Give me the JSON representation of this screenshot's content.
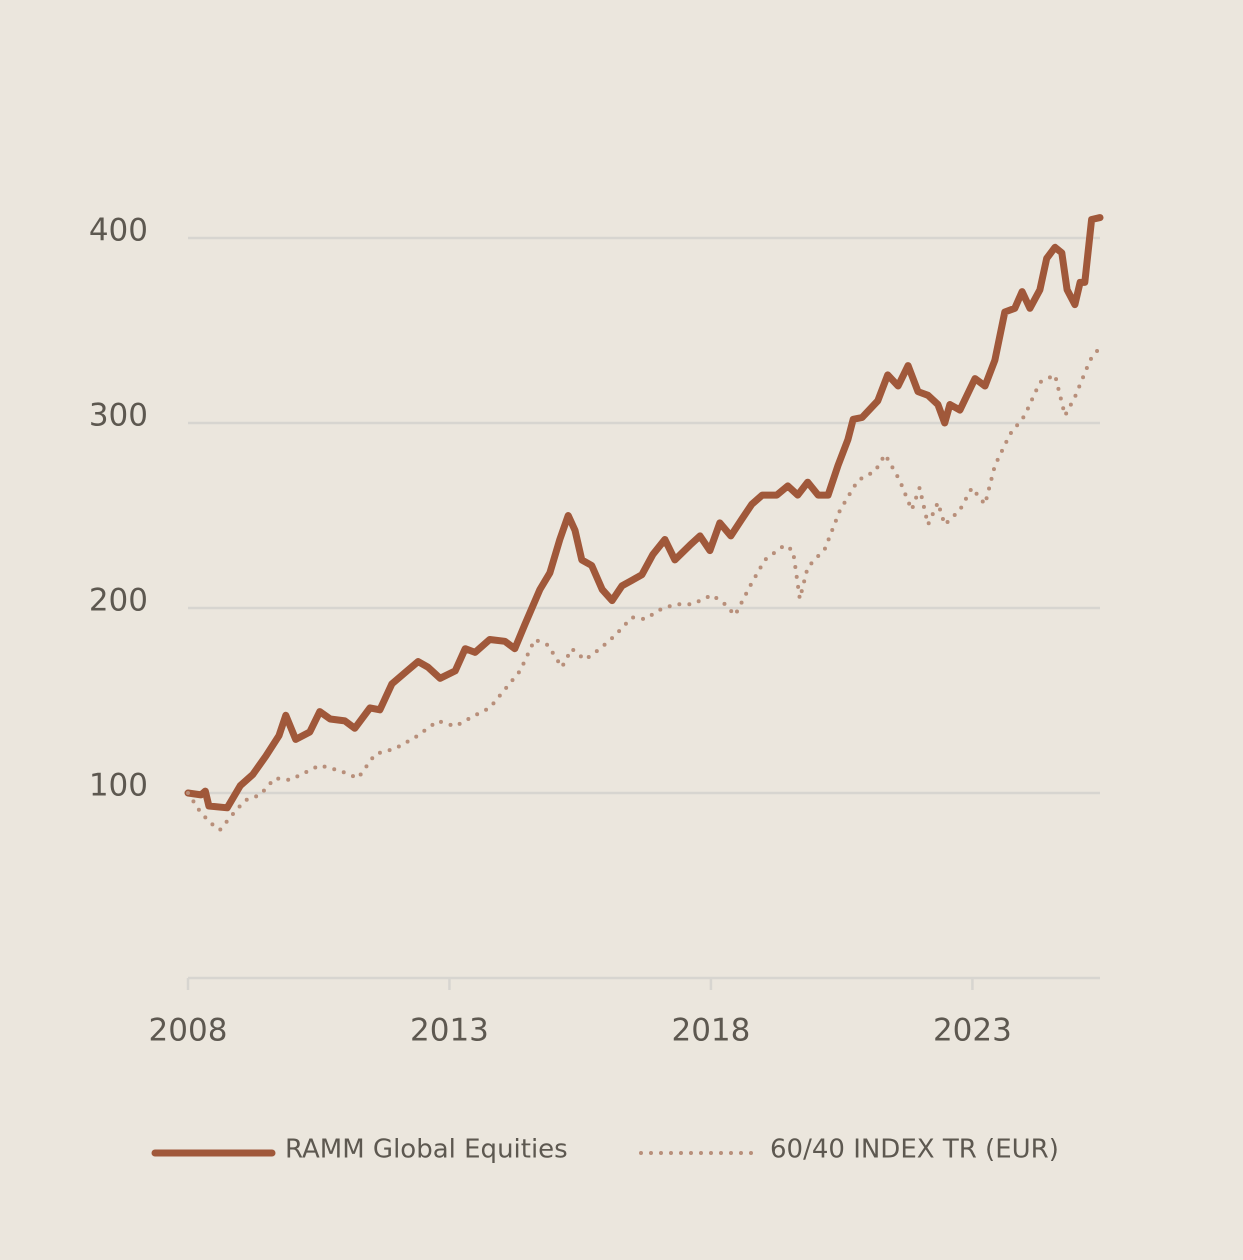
{
  "chart_data": {
    "type": "line",
    "xlim": [
      2008,
      2025.44
    ],
    "xticks": [
      2008,
      2013,
      2018,
      2023
    ],
    "ylim": [
      0,
      420
    ],
    "yticks": [
      100,
      200,
      300,
      400
    ],
    "grid": true,
    "legend": "bottom",
    "series": [
      {
        "name": "RAMM Global Equities",
        "color": "#a0583a",
        "style": "solid",
        "x": [
          2008.0,
          2008.25,
          2008.33,
          2008.4,
          2008.75,
          2009.0,
          2009.24,
          2009.49,
          2009.74,
          2009.87,
          2010.06,
          2010.33,
          2010.52,
          2010.72,
          2011.0,
          2011.19,
          2011.48,
          2011.67,
          2011.9,
          2012.19,
          2012.4,
          2012.59,
          2012.82,
          2013.11,
          2013.3,
          2013.49,
          2013.77,
          2014.06,
          2014.25,
          2014.44,
          2014.73,
          2014.92,
          2015.11,
          2015.27,
          2015.4,
          2015.53,
          2015.72,
          2015.92,
          2016.11,
          2016.3,
          2016.49,
          2016.68,
          2016.89,
          2017.12,
          2017.31,
          2017.6,
          2017.79,
          2017.98,
          2018.17,
          2018.38,
          2018.59,
          2018.78,
          2018.98,
          2019.26,
          2019.47,
          2019.66,
          2019.85,
          2020.05,
          2020.24,
          2020.43,
          2020.62,
          2020.72,
          2020.89,
          2021.19,
          2021.38,
          2021.58,
          2021.77,
          2021.96,
          2022.15,
          2022.34,
          2022.47,
          2022.57,
          2022.76,
          2023.05,
          2023.24,
          2023.43,
          2023.62,
          2023.81,
          2023.95,
          2024.1,
          2024.29,
          2024.42,
          2024.58,
          2024.71,
          2024.81,
          2024.96,
          2025.06,
          2025.15,
          2025.28,
          2025.44
        ],
        "values": [
          100,
          99,
          101,
          93,
          92,
          104,
          110,
          120,
          131,
          142,
          129,
          133,
          144,
          140,
          139,
          135,
          146,
          145,
          159,
          166,
          171,
          168,
          162,
          166,
          178,
          176,
          183,
          182,
          178,
          191,
          210,
          219,
          237,
          250,
          242,
          226,
          223,
          210,
          204,
          212,
          215,
          218,
          229,
          237,
          226,
          234,
          239,
          231,
          246,
          239,
          248,
          256,
          261,
          261,
          266,
          261,
          268,
          261,
          261,
          277,
          291,
          302,
          303,
          312,
          326,
          320,
          331,
          317,
          315,
          310,
          300,
          310,
          307,
          324,
          320,
          334,
          360,
          362,
          371,
          362,
          372,
          389,
          395,
          392,
          372,
          364,
          376,
          376,
          410,
          411
        ]
      },
      {
        "name": "60/40 INDEX TR (EUR)",
        "color": "#b88f7a",
        "style": "dotted",
        "x": [
          2008.0,
          2008.23,
          2008.42,
          2008.61,
          2008.84,
          2009.09,
          2009.38,
          2009.66,
          2009.95,
          2010.24,
          2010.52,
          2010.91,
          2011.25,
          2011.58,
          2011.96,
          2012.34,
          2012.78,
          2013.11,
          2013.49,
          2013.77,
          2014.06,
          2014.35,
          2014.63,
          2014.88,
          2015.15,
          2015.34,
          2015.59,
          2015.88,
          2016.16,
          2016.49,
          2016.74,
          2017.02,
          2017.31,
          2017.64,
          2018.02,
          2018.27,
          2018.46,
          2018.75,
          2019.03,
          2019.41,
          2019.57,
          2019.7,
          2019.85,
          2020.18,
          2020.47,
          2020.81,
          2021.14,
          2021.33,
          2021.61,
          2021.84,
          2021.99,
          2022.15,
          2022.34,
          2022.47,
          2022.76,
          2022.99,
          2023.24,
          2023.43,
          2023.72,
          2024.0,
          2024.29,
          2024.58,
          2024.77,
          2024.96,
          2025.25,
          2025.44
        ],
        "values": [
          100,
          90,
          84,
          80,
          88,
          96,
          99,
          108,
          107,
          111,
          115,
          112,
          108,
          121,
          124,
          130,
          139,
          136,
          142,
          146,
          156,
          166,
          183,
          180,
          168,
          178,
          172,
          178,
          185,
          195,
          194,
          199,
          202,
          202,
          207,
          202,
          196,
          212,
          226,
          234,
          231,
          205,
          222,
          232,
          253,
          269,
          274,
          283,
          269,
          253,
          265,
          245,
          257,
          245,
          253,
          265,
          256,
          277,
          294,
          304,
          322,
          326,
          304,
          314,
          334,
          341
        ]
      }
    ]
  }
}
